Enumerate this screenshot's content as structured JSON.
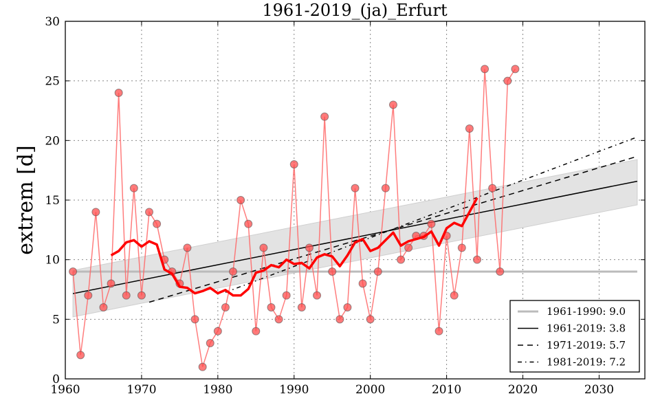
{
  "chart_data": {
    "type": "line",
    "title": "1961-2019_(ja)_Erfurt",
    "xlabel": "",
    "ylabel": "extrem [d]",
    "xlim": [
      1960,
      2036
    ],
    "ylim": [
      0,
      30
    ],
    "xticks": [
      "1960",
      "1970",
      "1980",
      "1990",
      "2000",
      "2010",
      "2020",
      "2030"
    ],
    "yticks": [
      "0",
      "5",
      "10",
      "15",
      "20",
      "25",
      "30"
    ],
    "grid": true,
    "legend_position": "bottom-right",
    "colors": {
      "points": "#ff6666",
      "moving_average": "#ff0000",
      "reference": "#bbbbbb",
      "trend": "#000000",
      "band": "#e3e3e3"
    },
    "x": [
      1961,
      1962,
      1963,
      1964,
      1965,
      1966,
      1967,
      1968,
      1969,
      1970,
      1971,
      1972,
      1973,
      1974,
      1975,
      1976,
      1977,
      1978,
      1979,
      1980,
      1981,
      1982,
      1983,
      1984,
      1985,
      1986,
      1987,
      1988,
      1989,
      1990,
      1991,
      1992,
      1993,
      1994,
      1995,
      1996,
      1997,
      1998,
      1999,
      2000,
      2001,
      2002,
      2003,
      2004,
      2005,
      2006,
      2007,
      2008,
      2009,
      2010,
      2011,
      2012,
      2013,
      2014,
      2015,
      2016,
      2017,
      2018,
      2019
    ],
    "values": [
      9,
      2,
      7,
      14,
      6,
      8,
      24,
      7,
      16,
      7,
      14,
      13,
      10,
      9,
      8,
      11,
      5,
      1,
      3,
      4,
      6,
      9,
      15,
      13,
      4,
      11,
      6,
      5,
      7,
      18,
      6,
      11,
      7,
      22,
      9,
      5,
      6,
      16,
      8,
      5,
      9,
      16,
      23,
      10,
      11,
      12,
      12,
      13,
      4,
      12,
      7,
      11,
      21,
      10,
      26,
      16,
      9,
      25,
      26
    ],
    "moving_average_window": 11,
    "confidence_band": {
      "x": [
        1961,
        2035
      ],
      "lower": [
        5.2,
        14.6
      ],
      "upper": [
        9.1,
        18.4
      ]
    },
    "legend": [
      {
        "label": "1961-1990: 9.0",
        "style": "reference",
        "value": 9.0,
        "from": 1961,
        "to": 1990
      },
      {
        "label": "1961-2019: 3.8",
        "style": "solid",
        "from": 1961,
        "to": 2019
      },
      {
        "label": "1971-2019: 5.7",
        "style": "dashed",
        "from": 1971,
        "to": 2019
      },
      {
        "label": "1981-2019: 7.2",
        "style": "dashdot",
        "from": 1981,
        "to": 2019
      }
    ],
    "trend_extend_to": 2035
  }
}
